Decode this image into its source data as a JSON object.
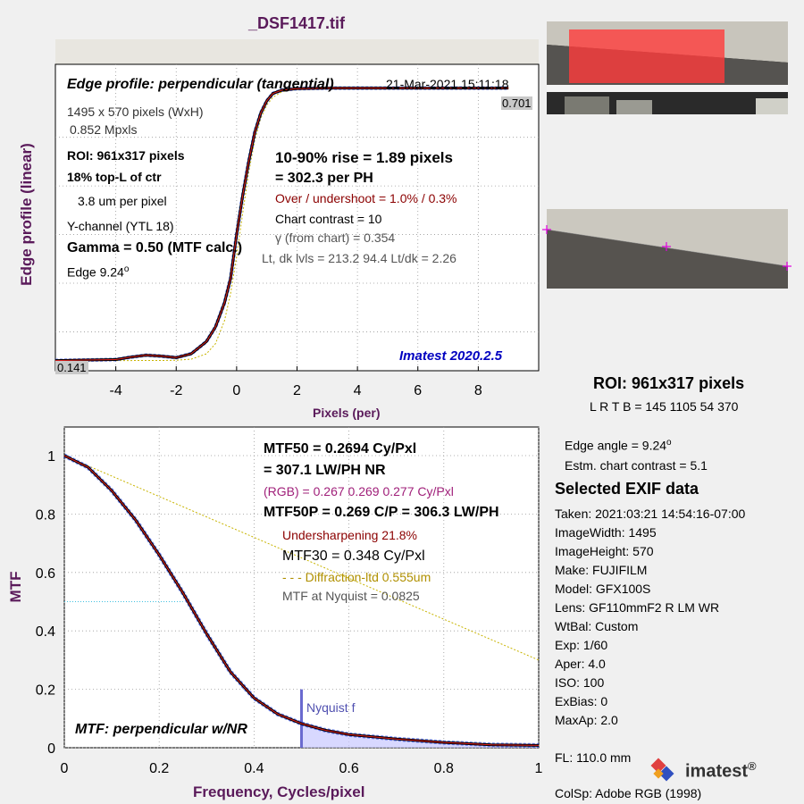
{
  "file_title": "_DSF1417.tif",
  "colors": {
    "title": "#5a1a5a",
    "axis_label": "#5a1a5a",
    "curve": "#000000",
    "red_curve": "#e02020",
    "blue_curve": "#2040ff",
    "diffraction": "#c8b400",
    "version": "#0000c0",
    "dark_red": "#8b0000",
    "magenta": "#a0207a",
    "nyquist": "#6a6ad0",
    "fill": "#c8c8ff"
  },
  "edge_panel": {
    "title": "Edge profile: perpendicular (tangential)",
    "date": "21-Mar-2021 15:11:18",
    "size": "1495 x 570 pixels (WxH)",
    "mpxls": "0.852 Mpxls",
    "roi": "ROI:  961x317 pixels",
    "location": "18% top-L of ctr",
    "pixel_pitch": "3.8 um per pixel",
    "channel": "Y-channel  (YTL 18)",
    "gamma": "Gamma = 0.50 (MTF calc.)",
    "edge_label": "Edge   9.24",
    "edge_deg": "o",
    "rise": "10-90% rise = 1.89 pixels",
    "per_ph": "=  302.3 per PH",
    "overshoot": "Over / undershoot =  1.0% /  0.3%",
    "contrast": "Chart contrast = 10",
    "gamma_chart": "γ (from chart) = 0.354",
    "levels": "Lt, dk lvls = 213.2  94.4  Lt/dk = 2.26",
    "version": "Imatest 2020.2.5",
    "y_label": "Edge profile (linear)",
    "x_label": "Pixels (per)",
    "top_value": "0.701",
    "bottom_value": "0.141",
    "x_ticks": [
      "-4",
      "-2",
      "0",
      "2",
      "4",
      "6",
      "8"
    ]
  },
  "roi_info": {
    "title": "ROI:  961x317 pixels",
    "lrtb": "L R  T B = 145 1105  54 370",
    "edge_angle": "Edge angle = 9.24",
    "edge_angle_deg": "o",
    "estm_contrast": "Estm. chart contrast = 5.1"
  },
  "exif": {
    "title": "Selected EXIF data",
    "items": [
      "Taken: 2021:03:21 14:54:16-07:00",
      "ImageWidth:  1495",
      "ImageHeight:  570",
      "Make:  FUJIFILM",
      "Model:  GFX100S",
      "Lens:   GF110mmF2 R LM WR",
      "WtBal:  Custom",
      "Exp:    1/60",
      "Aper:   4.0",
      "ISO:    100",
      "ExBias:  0",
      "MaxAp:  2.0"
    ],
    "fl": "FL:      110.0 mm",
    "colsp": "ColSp:  Adobe RGB (1998)"
  },
  "logo": {
    "text": "imatest",
    "mark": "®"
  },
  "mtf_panel": {
    "mtf50": "MTF50 = 0.2694 Cy/Pxl",
    "mtf50_lw": "= 307.1 LW/PH  NR",
    "rgb": "(RGB) = 0.267  0.269  0.277 Cy/Pxl",
    "mtf50p": "MTF50P = 0.269 C/P = 306.3 LW/PH",
    "undersharp": "Undersharpening 21.8%",
    "mtf30": "MTF30 = 0.348 Cy/Pxl",
    "diffraction": "- - - Diffraction-ltd  0.555um",
    "nyquist_mtf": "MTF at Nyquist = 0.0825",
    "nyquist_label": "Nyquist f",
    "bottom_label": "MTF: perpendicular w/NR",
    "y_label": "MTF",
    "x_label": "Frequency, Cycles/pixel",
    "x_ticks": [
      "0",
      "0.2",
      "0.4",
      "0.6",
      "0.8",
      "1"
    ],
    "y_ticks": [
      "0",
      "0.2",
      "0.4",
      "0.6",
      "0.8",
      "1"
    ]
  },
  "chart_data": [
    {
      "type": "line",
      "title": "Edge profile: perpendicular (tangential)",
      "xlabel": "Pixels (per)",
      "ylabel": "Edge profile (linear)",
      "xlim": [
        -6,
        10
      ],
      "ylim": [
        0.12,
        0.75
      ],
      "grid": true,
      "series": [
        {
          "x": [
            -6,
            -5,
            -4,
            -3.5,
            -3,
            -2.5,
            -2,
            -1.5,
            -1,
            -0.7,
            -0.4,
            -0.2,
            0,
            0.2,
            0.4,
            0.6,
            0.8,
            1.0,
            1.2,
            1.5,
            2,
            3,
            4,
            6,
            8,
            9
          ],
          "values": [
            0.141,
            0.142,
            0.143,
            0.148,
            0.152,
            0.15,
            0.147,
            0.155,
            0.18,
            0.21,
            0.26,
            0.31,
            0.4,
            0.48,
            0.55,
            0.61,
            0.65,
            0.675,
            0.69,
            0.697,
            0.7,
            0.701,
            0.701,
            0.701,
            0.701,
            0.701
          ]
        }
      ]
    },
    {
      "type": "line",
      "xlabel": "Frequency, Cycles/pixel",
      "ylabel": "MTF",
      "xlim": [
        0,
        1
      ],
      "ylim": [
        0,
        1.1
      ],
      "grid": true,
      "series": [
        {
          "x": [
            0,
            0.05,
            0.1,
            0.15,
            0.2,
            0.25,
            0.3,
            0.35,
            0.4,
            0.45,
            0.5,
            0.55,
            0.6,
            0.7,
            0.8,
            0.9,
            1.0
          ],
          "values": [
            1.0,
            0.96,
            0.88,
            0.78,
            0.66,
            0.53,
            0.39,
            0.26,
            0.17,
            0.115,
            0.0825,
            0.06,
            0.045,
            0.03,
            0.018,
            0.01,
            0.008
          ]
        },
        {
          "x": [
            0,
            1.0
          ],
          "values": [
            1.0,
            0.3
          ]
        }
      ]
    }
  ]
}
